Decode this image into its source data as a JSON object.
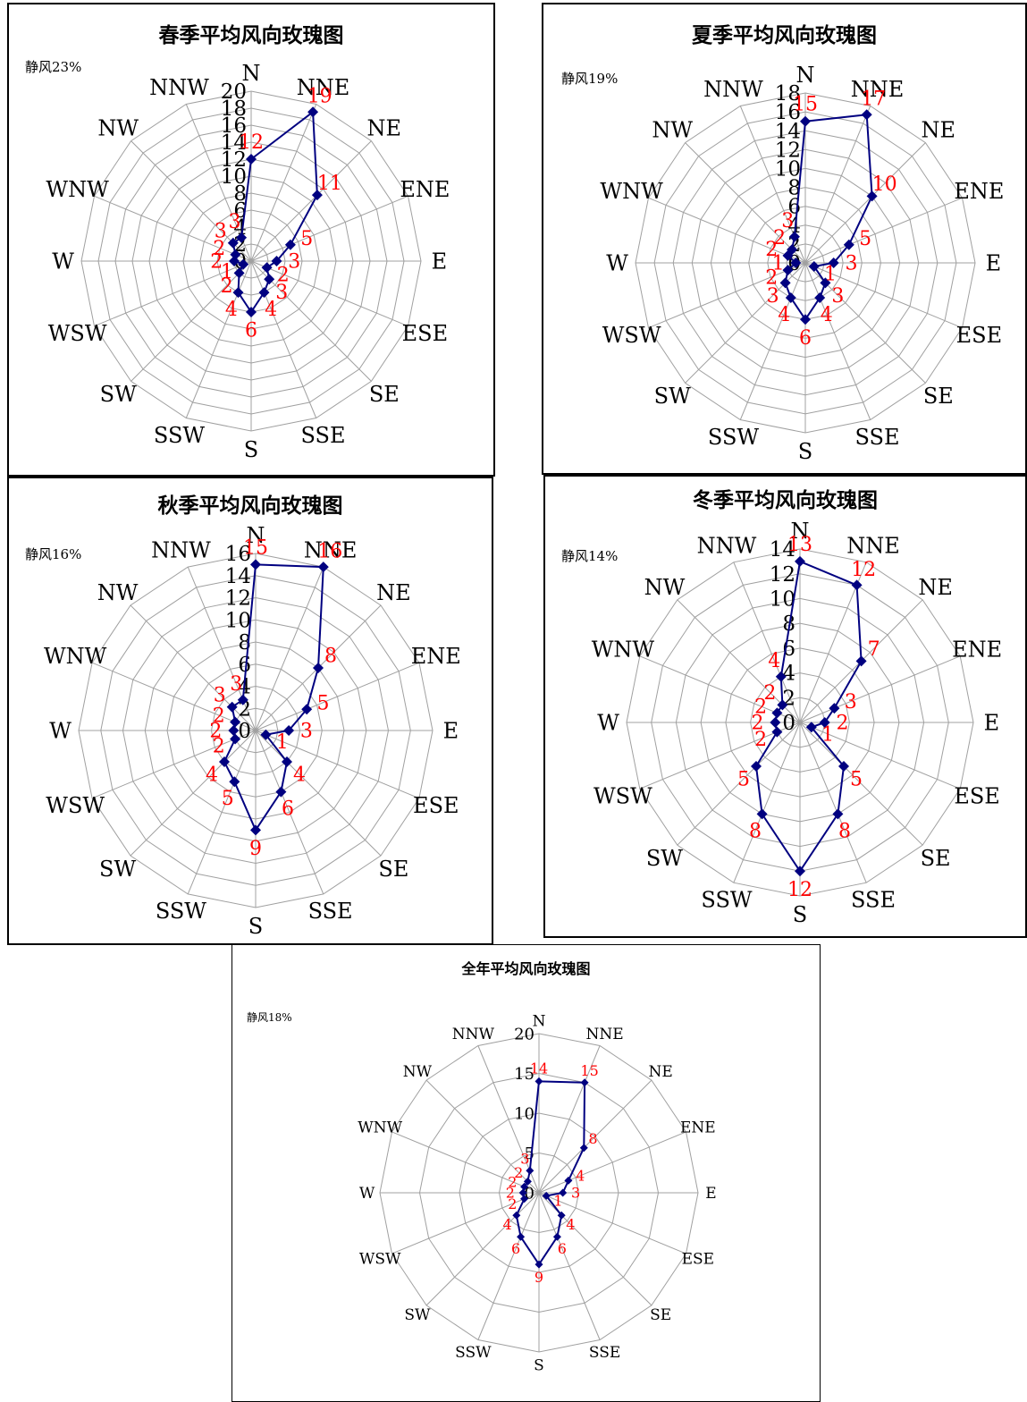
{
  "compass": [
    "N",
    "NNE",
    "NE",
    "ENE",
    "E",
    "ESE",
    "SE",
    "SSE",
    "S",
    "SSW",
    "SW",
    "WSW",
    "W",
    "WNW",
    "NW",
    "NNW"
  ],
  "colors": {
    "series": "#000080",
    "labels": "#ff0000",
    "grid": "#a0a0a0",
    "text": "#000000"
  },
  "chart_data": [
    {
      "type": "radar",
      "title": "春季平均风向玫瑰图",
      "calm_label": "静风23%",
      "categories": [
        "N",
        "NNE",
        "NE",
        "ENE",
        "E",
        "ESE",
        "SE",
        "SSE",
        "S",
        "SSW",
        "SW",
        "WSW",
        "W",
        "WNW",
        "NW",
        "NNW"
      ],
      "values": [
        12,
        19,
        11,
        5,
        3,
        2,
        3,
        4,
        6,
        4,
        2,
        1,
        2,
        2,
        3,
        3
      ],
      "value_labels": [
        "12",
        "19",
        "11",
        "5",
        "3",
        "2",
        "3",
        "4",
        "6",
        "4",
        "2",
        "1",
        "2",
        "2",
        "3",
        "3"
      ],
      "r_ticks": [
        "0",
        "2",
        "4",
        "6",
        "8",
        "10",
        "12",
        "14",
        "16",
        "18",
        "20"
      ],
      "rlim": [
        0,
        20
      ],
      "grid": true
    },
    {
      "type": "radar",
      "title": "夏季平均风向玫瑰图",
      "calm_label": "静风19%",
      "categories": [
        "N",
        "NNE",
        "NE",
        "ENE",
        "E",
        "ESE",
        "SE",
        "SSE",
        "S",
        "SSW",
        "SW",
        "WSW",
        "W",
        "WNW",
        "NW",
        "NNW"
      ],
      "values": [
        15,
        17,
        10,
        5,
        3,
        1,
        3,
        4,
        6,
        4,
        3,
        2,
        1,
        2,
        2,
        3
      ],
      "value_labels": [
        "15",
        "17",
        "10",
        "5",
        "3",
        "1",
        "3",
        "4",
        "6",
        "4",
        "3",
        "2",
        "1",
        "2",
        "2",
        "3"
      ],
      "r_ticks": [
        "0",
        "2",
        "4",
        "6",
        "8",
        "10",
        "12",
        "14",
        "16",
        "18"
      ],
      "rlim": [
        0,
        18
      ],
      "grid": true
    },
    {
      "type": "radar",
      "title": "秋季平均风向玫瑰图",
      "calm_label": "静风16%",
      "categories": [
        "N",
        "NNE",
        "NE",
        "ENE",
        "E",
        "ESE",
        "SE",
        "SSE",
        "S",
        "SSW",
        "SW",
        "WSW",
        "W",
        "WNW",
        "NW",
        "NNW"
      ],
      "values": [
        15,
        16,
        8,
        5,
        3,
        1,
        4,
        6,
        9,
        5,
        4,
        2,
        2,
        2,
        3,
        3
      ],
      "value_labels": [
        "15",
        "16",
        "8",
        "5",
        "3",
        "1",
        "4",
        "6",
        "9",
        "5",
        "4",
        "2",
        "2",
        "2",
        "3",
        "3"
      ],
      "r_ticks": [
        "0",
        "2",
        "4",
        "6",
        "8",
        "10",
        "12",
        "14",
        "16"
      ],
      "rlim": [
        0,
        16
      ],
      "grid": true
    },
    {
      "type": "radar",
      "title": "冬季平均风向玫瑰图",
      "calm_label": "静风14%",
      "categories": [
        "N",
        "NNE",
        "NE",
        "ENE",
        "E",
        "ESE",
        "SE",
        "SSE",
        "S",
        "SSW",
        "SW",
        "WSW",
        "W",
        "WNW",
        "NW",
        "NNW"
      ],
      "values": [
        13,
        12,
        7,
        3,
        2,
        1,
        5,
        8,
        12,
        8,
        5,
        2,
        2,
        2,
        2,
        4
      ],
      "value_labels": [
        "13",
        "12",
        "7",
        "3",
        "2",
        "1",
        "5",
        "8",
        "12",
        "8",
        "5",
        "2",
        "2",
        "2",
        "2",
        "4"
      ],
      "r_ticks": [
        "0",
        "2",
        "4",
        "6",
        "8",
        "10",
        "12",
        "14"
      ],
      "rlim": [
        0,
        14
      ],
      "grid": true
    },
    {
      "type": "radar",
      "title": "全年平均风向玫瑰图",
      "calm_label": "静风18%",
      "categories": [
        "N",
        "NNE",
        "NE",
        "ENE",
        "E",
        "ESE",
        "SE",
        "SSE",
        "S",
        "SSW",
        "SW",
        "WSW",
        "W",
        "WNW",
        "NW",
        "NNW"
      ],
      "values": [
        14,
        15,
        8,
        4,
        3,
        1,
        4,
        6,
        9,
        6,
        4,
        2,
        2,
        2,
        2,
        3
      ],
      "value_labels": [
        "14",
        "15",
        "8",
        "4",
        "3",
        "1",
        "4",
        "6",
        "9",
        "6",
        "4",
        "2",
        "2",
        "2",
        "2",
        "3"
      ],
      "r_ticks": [
        "0",
        "5",
        "10",
        "15",
        "20"
      ],
      "rlim": [
        0,
        20
      ],
      "grid": true
    }
  ]
}
